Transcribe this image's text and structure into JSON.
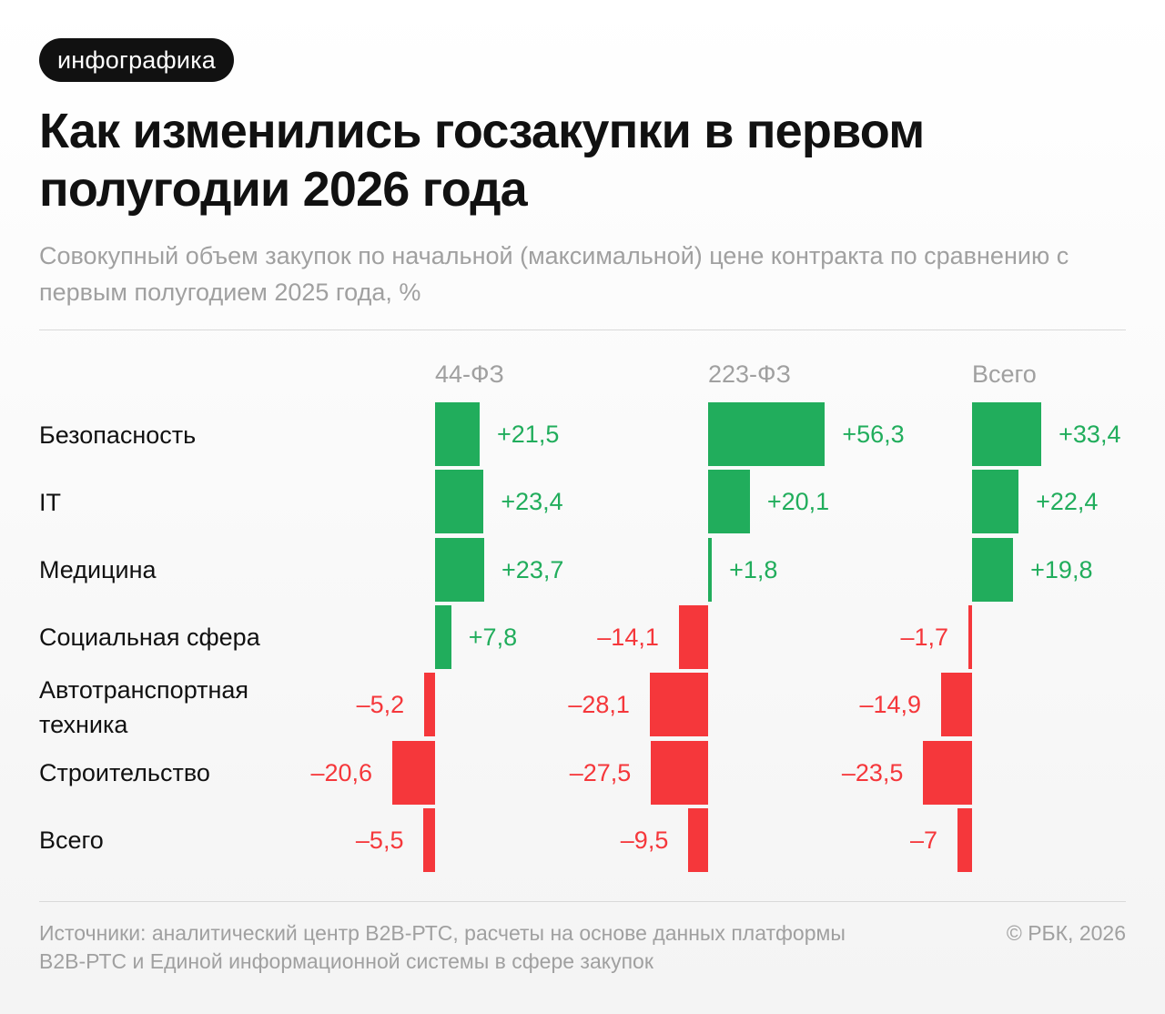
{
  "badge": "инфографика",
  "title": "Как изменились госзакупки в первом полугодии 2026 года",
  "subtitle": "Совокупный объем закупок по начальной (максимальной) цене контракта по сравнению с первым полугодием 2025 года, %",
  "source": "Источники: аналитический центр B2B-РТС, расчеты на основе данных платформы B2B-РТС и Единой информационной системы в сфере закупок",
  "copyright": "© РБК, 2026",
  "colors": {
    "positive": "#21ad5c",
    "negative": "#f5373b"
  },
  "chart_data": {
    "type": "bar",
    "categories": [
      "Безопасность",
      "IT",
      "Медицина",
      "Социальная сфера",
      "Автотранспортная техника",
      "Строительство",
      "Всего"
    ],
    "series": [
      {
        "name": "44-ФЗ",
        "values": [
          21.5,
          23.4,
          23.7,
          7.8,
          -5.2,
          -20.6,
          -5.5
        ],
        "labels": [
          "+21,5",
          "+23,4",
          "+23,7",
          "+7,8",
          "–5,2",
          "–20,6",
          "–5,5"
        ]
      },
      {
        "name": "223-ФЗ",
        "values": [
          56.3,
          20.1,
          1.8,
          -14.1,
          -28.1,
          -27.5,
          -9.5
        ],
        "labels": [
          "+56,3",
          "+20,1",
          "+1,8",
          "–14,1",
          "–28,1",
          "–27,5",
          "–9,5"
        ]
      },
      {
        "name": "Всего",
        "values": [
          33.4,
          22.4,
          19.8,
          -1.7,
          -14.9,
          -23.5,
          -7
        ],
        "labels": [
          "+33,4",
          "+22,4",
          "+19,8",
          "–1,7",
          "–14,9",
          "–23,5",
          "–7"
        ]
      }
    ]
  }
}
